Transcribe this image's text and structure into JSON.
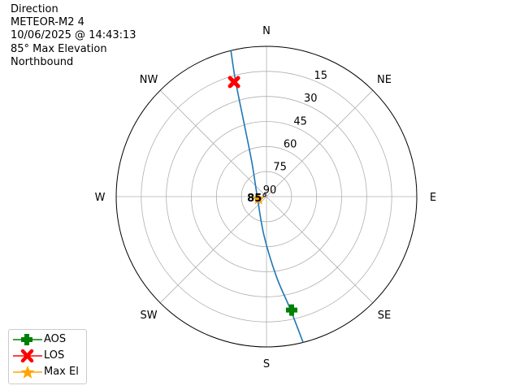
{
  "header": {
    "lines": [
      "Direction",
      "METEOR-M2 4",
      "10/06/2025 @ 14:43:13",
      "85° Max Elevation",
      "Northbound"
    ]
  },
  "chart_data": {
    "type": "polar",
    "angular_labels": [
      {
        "label": "N",
        "az": 0
      },
      {
        "label": "NE",
        "az": 45
      },
      {
        "label": "E",
        "az": 90
      },
      {
        "label": "SE",
        "az": 135
      },
      {
        "label": "S",
        "az": 180
      },
      {
        "label": "SW",
        "az": 225
      },
      {
        "label": "W",
        "az": 270
      },
      {
        "label": "NW",
        "az": 315
      }
    ],
    "radial_ticks": [
      "15",
      "30",
      "45",
      "60",
      "75",
      "90"
    ],
    "radial_tick_values": [
      15,
      30,
      45,
      60,
      75,
      90
    ],
    "elevation_range": [
      0,
      90
    ],
    "grid": true,
    "track": {
      "color": "#1f77b4",
      "points_az_el": [
        [
          165.9,
          0
        ],
        [
          168.1,
          21.4
        ],
        [
          173,
          42
        ],
        [
          183.6,
          66.6
        ],
        [
          254.7,
          84.5
        ],
        [
          336.8,
          67.8
        ],
        [
          343.1,
          43.2
        ],
        [
          345.0,
          18.5
        ],
        [
          346.3,
          0
        ]
      ]
    },
    "markers": [
      {
        "name": "AOS",
        "az": 167.5,
        "el": 20.4,
        "color": "#008000",
        "shape": "plus"
      },
      {
        "name": "LOS",
        "az": 344.2,
        "el": 18.7,
        "color": "#ff0000",
        "shape": "x"
      },
      {
        "name": "Max El",
        "az": 253,
        "el": 85,
        "color": "#ffa500",
        "shape": "star",
        "label": "85°"
      }
    ],
    "legend_position": "lower-left"
  }
}
